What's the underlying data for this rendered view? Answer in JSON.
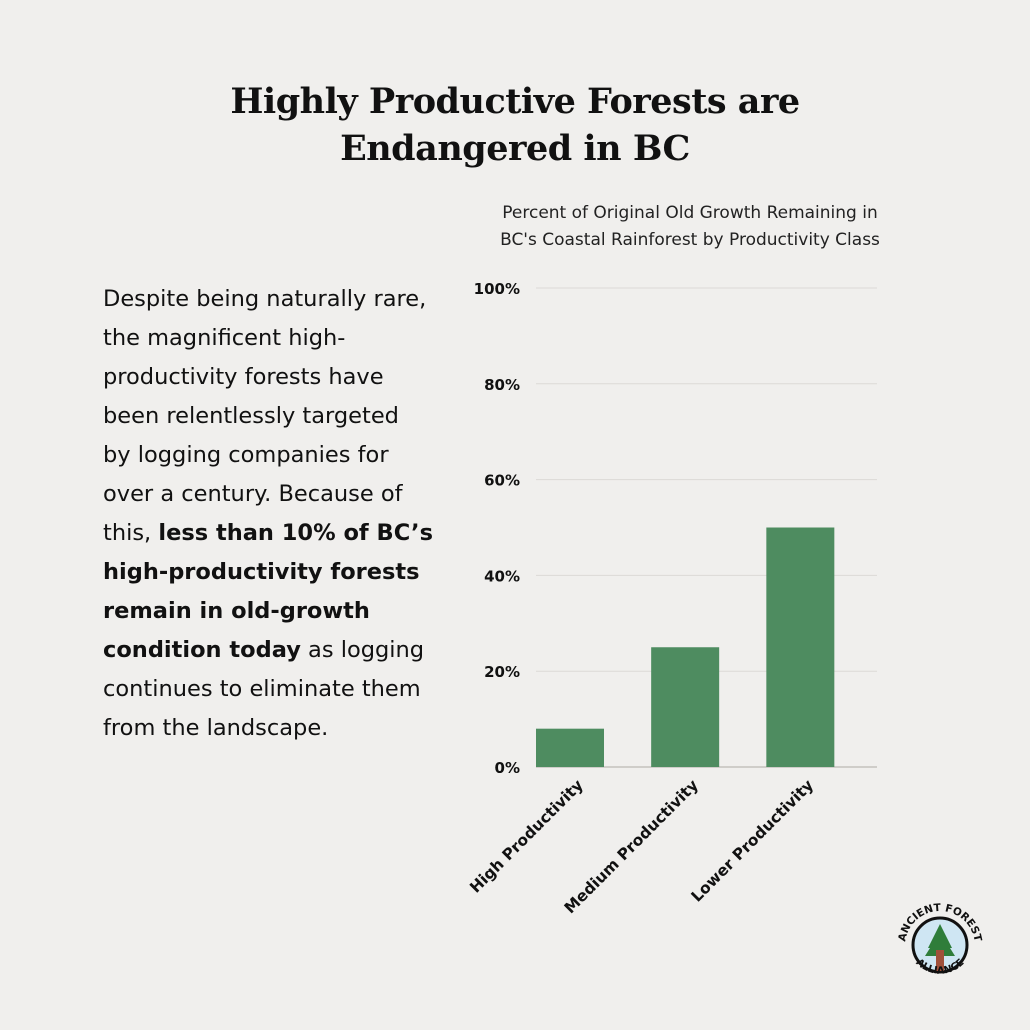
{
  "title_lines": [
    "Highly Productive Forests are",
    "Endangered in BC"
  ],
  "body": {
    "part1": "Despite being naturally rare, the magnificent high-productivity forests have been relentlessly targeted by logging companies for over a century. Because of this, ",
    "bold": "less than 10% of BC’s high-productivity forests remain in old-growth condition today",
    "part2": " as logging continues to eliminate them from the landscape."
  },
  "logo": {
    "text": "ANCIENT FOREST ALLIANCE"
  },
  "colors": {
    "background": "#f0efed",
    "bar": "#4e8c60",
    "grid": "#dcdad6"
  },
  "chart_data": {
    "type": "bar",
    "title_lines": [
      "Percent of Original Old Growth Remaining in",
      "BC's Coastal Rainforest by Productivity Class"
    ],
    "categories": [
      "High Productivity",
      "Medium Productivity",
      "Lower Productivity"
    ],
    "values": [
      8,
      25,
      50
    ],
    "ylim": [
      0,
      100
    ],
    "yticks": [
      0,
      20,
      40,
      60,
      80,
      100
    ],
    "ytick_labels": [
      "0%",
      "20%",
      "40%",
      "60%",
      "80%",
      "100%"
    ],
    "grid": true,
    "xlabel": "",
    "ylabel": ""
  }
}
